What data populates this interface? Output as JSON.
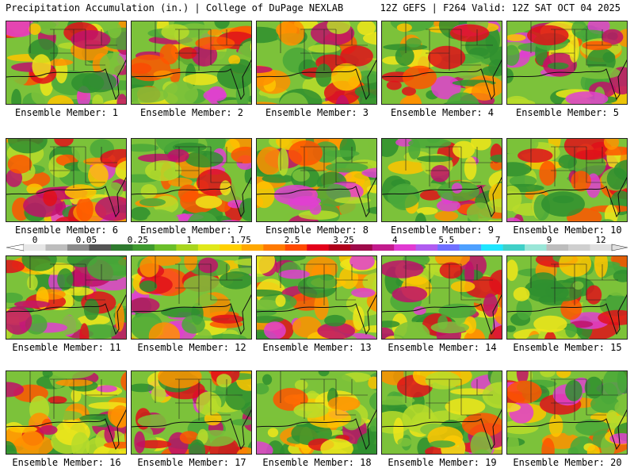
{
  "header": {
    "title_left": "Precipitation Accumulation (in.) | College of DuPage NEXLAB",
    "title_right": "12Z GEFS | F264 Valid: 12Z SAT OCT 04 2025"
  },
  "label_prefix": "Ensemble Member: ",
  "panels": [
    {
      "member": "1"
    },
    {
      "member": "2"
    },
    {
      "member": "3"
    },
    {
      "member": "4"
    },
    {
      "member": "5"
    },
    {
      "member": "6"
    },
    {
      "member": "7"
    },
    {
      "member": "8"
    },
    {
      "member": "9"
    },
    {
      "member": "10"
    },
    {
      "member": "11"
    },
    {
      "member": "12"
    },
    {
      "member": "13"
    },
    {
      "member": "14"
    },
    {
      "member": "15"
    },
    {
      "member": "16"
    },
    {
      "member": "17"
    },
    {
      "member": "18"
    },
    {
      "member": "19"
    },
    {
      "member": "20"
    }
  ],
  "colorbar": {
    "tick_labels": [
      "0",
      "0.05",
      "0.25",
      "1",
      "1.75",
      "2.5",
      "3.25",
      "4",
      "5.5",
      "7",
      "9",
      "12"
    ],
    "colors": [
      "#e6e6e6",
      "#bdbdbd",
      "#8c8c8c",
      "#555555",
      "#2f7a2f",
      "#3f9a2f",
      "#6bbf2a",
      "#a8d51f",
      "#e0e81a",
      "#ffd000",
      "#ffa800",
      "#ff7a00",
      "#ff4a00",
      "#e3001a",
      "#b0001a",
      "#9e0a4a",
      "#c21b8c",
      "#e13ad2",
      "#b05cf0",
      "#7070ff",
      "#4ea0ff",
      "#20e6ff",
      "#40d0c8",
      "#9ae6d8",
      "#bdbdbd",
      "#cfcfcf",
      "#e0e0e0"
    ]
  }
}
